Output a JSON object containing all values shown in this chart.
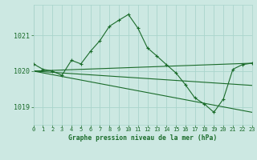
{
  "title": "Graphe pression niveau de la mer (hPa)",
  "bg_color": "#cce8e2",
  "grid_color": "#aad4cc",
  "line_color": "#1a6b2a",
  "xlim": [
    0,
    23
  ],
  "ylim": [
    1018.5,
    1021.85
  ],
  "yticks": [
    1019,
    1020,
    1021
  ],
  "xticks": [
    0,
    1,
    2,
    3,
    4,
    5,
    6,
    7,
    8,
    9,
    10,
    11,
    12,
    13,
    14,
    15,
    16,
    17,
    18,
    19,
    20,
    21,
    22,
    23
  ],
  "main_line": {
    "x": [
      0,
      1,
      2,
      3,
      4,
      5,
      6,
      7,
      8,
      9,
      10,
      11,
      12,
      13,
      14,
      15,
      16,
      17,
      18,
      19,
      20,
      21,
      22,
      23
    ],
    "y": [
      1020.2,
      1020.05,
      1020.0,
      1019.88,
      1020.3,
      1020.2,
      1020.55,
      1020.85,
      1021.25,
      1021.42,
      1021.58,
      1021.2,
      1020.65,
      1020.42,
      1020.18,
      1019.95,
      1019.62,
      1019.25,
      1019.08,
      1018.85,
      1019.22,
      1020.05,
      1020.18,
      1020.22
    ]
  },
  "trend_lines": [
    {
      "x": [
        0,
        23
      ],
      "y": [
        1020.0,
        1020.22
      ]
    },
    {
      "x": [
        0,
        23
      ],
      "y": [
        1020.0,
        1018.85
      ]
    },
    {
      "x": [
        0,
        23
      ],
      "y": [
        1020.0,
        1019.6
      ]
    }
  ],
  "figsize": [
    3.2,
    2.0
  ],
  "dpi": 100
}
